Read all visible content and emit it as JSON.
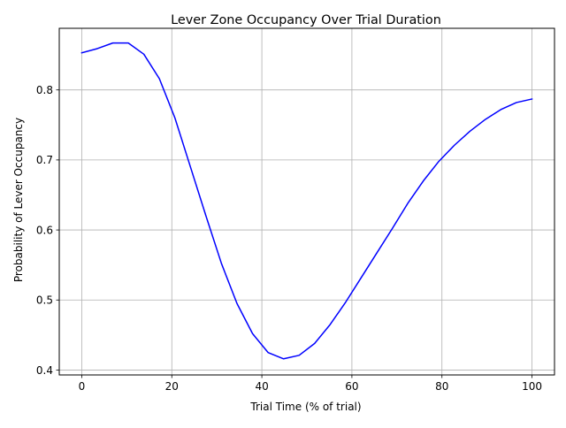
{
  "chart_data": {
    "type": "line",
    "title": "Lever Zone Occupancy Over Trial Duration",
    "xlabel": "Trial Time (% of trial)",
    "ylabel": "Probability of Lever Occupancy",
    "xlim": [
      -5,
      105
    ],
    "ylim": [
      0.393,
      0.888
    ],
    "xticks": [
      0,
      20,
      40,
      60,
      80,
      100
    ],
    "yticks": [
      0.4,
      0.5,
      0.6,
      0.7,
      0.8
    ],
    "ytick_labels": [
      "0.4",
      "0.5",
      "0.6",
      "0.7",
      "0.8"
    ],
    "grid": true,
    "series": [
      {
        "color": "#0000ff",
        "x": [
          0,
          3.45,
          6.9,
          10.34,
          13.79,
          17.24,
          20.69,
          24.14,
          27.59,
          31.03,
          34.48,
          37.93,
          41.38,
          44.83,
          48.28,
          51.72,
          55.17,
          58.62,
          62.07,
          65.52,
          68.97,
          72.41,
          75.86,
          79.31,
          82.76,
          86.21,
          89.66,
          93.1,
          96.55,
          100
        ],
        "y": [
          0.853,
          0.859,
          0.867,
          0.867,
          0.851,
          0.816,
          0.76,
          0.69,
          0.62,
          0.552,
          0.495,
          0.452,
          0.425,
          0.416,
          0.421,
          0.438,
          0.465,
          0.497,
          0.532,
          0.567,
          0.602,
          0.638,
          0.67,
          0.698,
          0.721,
          0.741,
          0.758,
          0.772,
          0.782,
          0.787
        ]
      }
    ]
  }
}
